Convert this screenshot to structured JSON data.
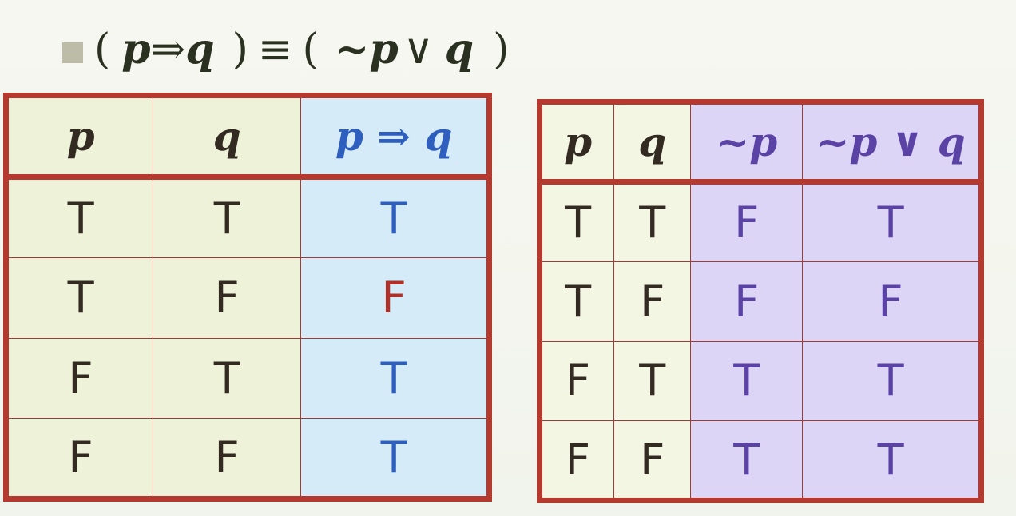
{
  "formula": {
    "open1": "(",
    "p1": "p",
    "implies": "⇒",
    "q1": "q",
    "close1": ")",
    "equiv": "≡",
    "open2": "(",
    "notp": "~p",
    "or": "∨",
    "q2": "q",
    "close2": ")"
  },
  "implication_table": {
    "headers": [
      "p",
      "q",
      "p ⇒ q"
    ],
    "rows": [
      [
        "T",
        "T",
        "T"
      ],
      [
        "T",
        "F",
        "F"
      ],
      [
        "F",
        "T",
        "T"
      ],
      [
        "F",
        "F",
        "T"
      ]
    ]
  },
  "disjunction_table": {
    "headers": [
      "p",
      "q",
      "~p",
      "~p ∨ q"
    ],
    "rows": [
      [
        "T",
        "T",
        "F",
        "T"
      ],
      [
        "T",
        "F",
        "F",
        "F"
      ],
      [
        "F",
        "T",
        "T",
        "T"
      ],
      [
        "F",
        "F",
        "T",
        "T"
      ]
    ]
  },
  "colors": {
    "border": "#b5392f",
    "blue_text": "#2e5fbf",
    "red_text": "#b0302a",
    "purple_text": "#5b43a6",
    "dark_text": "#332a22"
  }
}
